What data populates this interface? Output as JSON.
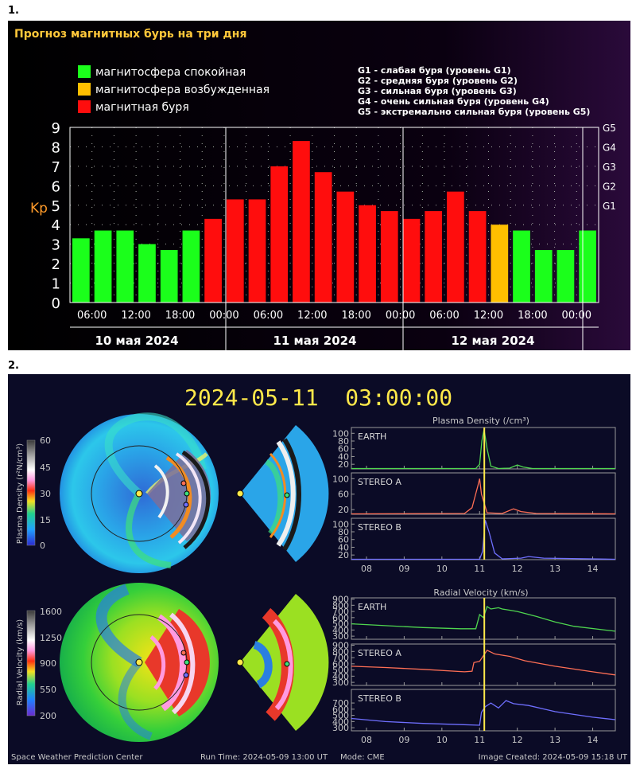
{
  "labels": {
    "p1": "1.",
    "p2": "2."
  },
  "panel1": {
    "title": "Прогноз магнитных бурь на три дня",
    "legend": [
      {
        "label": "магнитосфера спокойная",
        "color": "#1bff1b"
      },
      {
        "label": "магнитосфера возбужденная",
        "color": "#ffbf00"
      },
      {
        "label": "магнитная буря",
        "color": "#ff0d0d"
      }
    ],
    "g_legend": [
      "G1 - слабая буря (уровень G1)",
      "G2 - средняя буря (уровень G2)",
      "G3 - сильная буря (уровень G3)",
      "G4 - очень сильная буря (уровень G4)",
      "G5 - экстремально сильная буря (уровень G5)"
    ],
    "ylabel": "Kp",
    "g_ticks": [
      "G1",
      "G2",
      "G3",
      "G4",
      "G5"
    ],
    "x_ticks": [
      "06:00",
      "12:00",
      "18:00",
      "00:00",
      "06:00",
      "12:00",
      "18:00",
      "00:00",
      "06:00",
      "12:00",
      "18:00",
      "00:00"
    ],
    "days": [
      "10 мая 2024",
      "11 мая 2024",
      "12 мая 2024"
    ]
  },
  "chart_data": [
    {
      "type": "bar",
      "title": "Прогноз магнитных бурь на три дня",
      "ylabel": "Kp",
      "ylim": [
        0,
        9
      ],
      "grid": true,
      "values": [
        3.3,
        3.7,
        3.7,
        3.0,
        2.7,
        3.7,
        4.3,
        5.3,
        5.3,
        7.0,
        8.3,
        6.7,
        5.7,
        5.0,
        4.7,
        4.3,
        4.7,
        5.7,
        4.7,
        4.0,
        3.7,
        2.7,
        2.7,
        3.7
      ],
      "colors": [
        "#1bff1b",
        "#1bff1b",
        "#1bff1b",
        "#1bff1b",
        "#1bff1b",
        "#1bff1b",
        "#ff0d0d",
        "#ff0d0d",
        "#ff0d0d",
        "#ff0d0d",
        "#ff0d0d",
        "#ff0d0d",
        "#ff0d0d",
        "#ff0d0d",
        "#ff0d0d",
        "#ff0d0d",
        "#ff0d0d",
        "#ff0d0d",
        "#ff0d0d",
        "#ffbf00",
        "#1bff1b",
        "#1bff1b",
        "#1bff1b",
        "#1bff1b"
      ]
    },
    {
      "type": "line",
      "title": "Plasma Density (/cm³)",
      "x_ticks": [
        "08",
        "09",
        "10",
        "11",
        "12",
        "13",
        "14"
      ],
      "xlim": [
        7.6,
        14.6
      ],
      "series": [
        {
          "name": "EARTH",
          "color": "#4fd64f",
          "ylim": [
            8,
            115
          ],
          "y_ticks": [
            20,
            40,
            60,
            80,
            100
          ],
          "x": [
            7.6,
            10.9,
            11.0,
            11.06,
            11.12,
            11.2,
            11.3,
            11.5,
            11.8,
            12.0,
            12.15,
            12.4,
            14.6
          ],
          "y": [
            9,
            9,
            20,
            80,
            110,
            60,
            15,
            9,
            10,
            18,
            13,
            9,
            9
          ]
        },
        {
          "name": "STEREO A",
          "color": "#ff6f55",
          "ylim": [
            8,
            115
          ],
          "y_ticks": [
            20,
            60,
            100
          ],
          "x": [
            7.6,
            10.6,
            10.8,
            10.95,
            11.0,
            11.05,
            11.2,
            11.6,
            11.9,
            12.1,
            12.5,
            14.6
          ],
          "y": [
            9,
            10,
            25,
            80,
            100,
            60,
            12,
            10,
            22,
            15,
            10,
            9
          ]
        },
        {
          "name": "STEREO B",
          "color": "#6f6fff",
          "ylim": [
            8,
            115
          ],
          "y_ticks": [
            20,
            40,
            60,
            80,
            100
          ],
          "x": [
            7.6,
            11.0,
            11.08,
            11.15,
            11.25,
            11.4,
            11.6,
            12.1,
            12.3,
            12.7,
            14.6
          ],
          "y": [
            9,
            9,
            30,
            110,
            80,
            25,
            10,
            12,
            16,
            12,
            9
          ]
        }
      ]
    },
    {
      "type": "line",
      "title": "Radial Velocity (km/s)",
      "x_ticks": [
        "08",
        "09",
        "10",
        "11",
        "12",
        "13",
        "14"
      ],
      "xlim": [
        7.6,
        14.6
      ],
      "series": [
        {
          "name": "EARTH",
          "color": "#4fd64f",
          "ylim": [
            250,
            920
          ],
          "y_ticks": [
            300,
            400,
            500,
            600,
            700,
            800,
            900
          ],
          "x": [
            7.6,
            8.5,
            9.5,
            10.5,
            10.9,
            11.0,
            11.1,
            11.2,
            11.3,
            11.5,
            11.6,
            11.8,
            12.0,
            12.5,
            13.0,
            13.5,
            14.6
          ],
          "y": [
            500,
            470,
            440,
            420,
            420,
            650,
            600,
            780,
            740,
            760,
            740,
            720,
            700,
            620,
            530,
            460,
            380
          ]
        },
        {
          "name": "STEREO A",
          "color": "#ff6f55",
          "ylim": [
            250,
            920
          ],
          "y_ticks": [
            300,
            400,
            500,
            600,
            700,
            800,
            900
          ],
          "x": [
            7.6,
            8.5,
            9.5,
            10.6,
            10.8,
            10.85,
            11.0,
            11.2,
            11.4,
            11.6,
            11.8,
            12.2,
            13.0,
            14.0,
            14.6
          ],
          "y": [
            560,
            540,
            510,
            470,
            480,
            620,
            640,
            820,
            760,
            740,
            720,
            650,
            560,
            470,
            420
          ]
        },
        {
          "name": "STEREO B",
          "color": "#6f6fff",
          "ylim": [
            250,
            920
          ],
          "y_ticks": [
            300,
            400,
            500,
            600,
            700
          ],
          "x": [
            7.6,
            8.5,
            9.5,
            10.5,
            11.0,
            11.05,
            11.15,
            11.3,
            11.5,
            11.7,
            11.9,
            12.3,
            13.0,
            14.0,
            14.6
          ],
          "y": [
            450,
            400,
            370,
            350,
            340,
            550,
            640,
            700,
            620,
            740,
            690,
            660,
            560,
            470,
            430
          ]
        }
      ]
    }
  ],
  "panel2": {
    "timestamp": "2024-05-11  03:00:00",
    "density_cbar_label": "Plasma Density (r²N/cm³)",
    "density_cbar_ticks": [
      "60",
      "45",
      "30",
      "15",
      "0"
    ],
    "velocity_cbar_label": "Radial Velocity (km/s)",
    "velocity_cbar_ticks": [
      "1600",
      "1250",
      "900",
      "550",
      "200"
    ],
    "current_time_x": 11.125,
    "footer": {
      "org": "Space Weather Prediction Center",
      "run_time": "Run Time: 2024-05-09 13:00 UT",
      "mode": "Mode: CME",
      "created": "Image Created: 2024-05-09 15:18 UT"
    }
  }
}
